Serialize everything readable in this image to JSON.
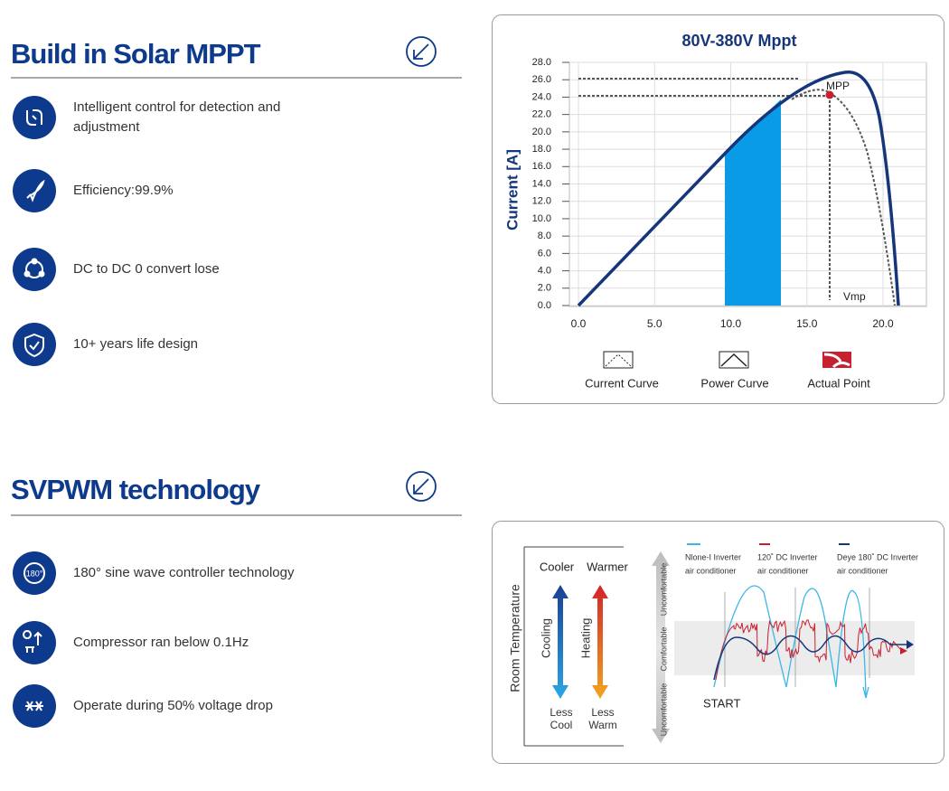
{
  "sections": [
    {
      "title": "Build in Solar MPPT",
      "features": [
        "Intelligent control for detection and adjustment",
        "Efficiency:99.9%",
        "DC to DC 0 convert lose",
        "10+ years life design"
      ],
      "chart": {
        "title": "80V-380V  Mppt",
        "y_label": "Current [A]",
        "yticks": [
          {
            "value": 0,
            "label": "0.0"
          },
          {
            "value": 2,
            "label": "2.0"
          },
          {
            "value": 4,
            "label": "4.0"
          },
          {
            "value": 6,
            "label": "6.0"
          },
          {
            "value": 8,
            "label": "8.0"
          },
          {
            "value": 10,
            "label": "10.0"
          },
          {
            "value": 12,
            "label": "12.0"
          },
          {
            "value": 14,
            "label": "14.0"
          },
          {
            "value": 16,
            "label": "16.0"
          },
          {
            "value": 18,
            "label": "18.0"
          },
          {
            "value": 20,
            "label": "20.0"
          },
          {
            "value": 22,
            "label": "22.0"
          },
          {
            "value": 24,
            "label": "24.0"
          },
          {
            "value": 26,
            "label": "26.0"
          },
          {
            "value": 28,
            "label": "28.0"
          }
        ],
        "xticks": [
          {
            "value": 0,
            "label": "0.0"
          },
          {
            "value": 5,
            "label": "5.0"
          },
          {
            "value": 10,
            "label": "10.0"
          },
          {
            "value": 15,
            "label": "15.0"
          },
          {
            "value": 20,
            "label": "20.0"
          }
        ],
        "annotations": [
          "MPP",
          "Vmp"
        ],
        "legend": [
          "Current  Curve",
          "Power Curve",
          "Actual Point"
        ]
      }
    },
    {
      "title": "SVPWM technology",
      "features": [
        "180° sine wave controller technology",
        "Compressor ran below 0.1Hz",
        "Operate during 50% voltage drop"
      ],
      "diagram": {
        "y_label": "Room Temperature",
        "cooler": "Cooler",
        "warmer": "Warmer",
        "cooling": "Cooling",
        "heating": "Heating",
        "less_cool": [
          "Less",
          "Cool"
        ],
        "less_warm": [
          "Less",
          "Warm"
        ],
        "zones": [
          "Uncomfortable",
          "Comfortable",
          "Uncomfortable"
        ],
        "legend": [
          [
            "Nlone-I Inverter",
            "air conditioner"
          ],
          [
            "120˚  DC Inverter",
            "air conditioner"
          ],
          [
            "Deye 180˚  DC Inverter",
            "air conditioner"
          ]
        ],
        "start": "START"
      }
    }
  ]
}
